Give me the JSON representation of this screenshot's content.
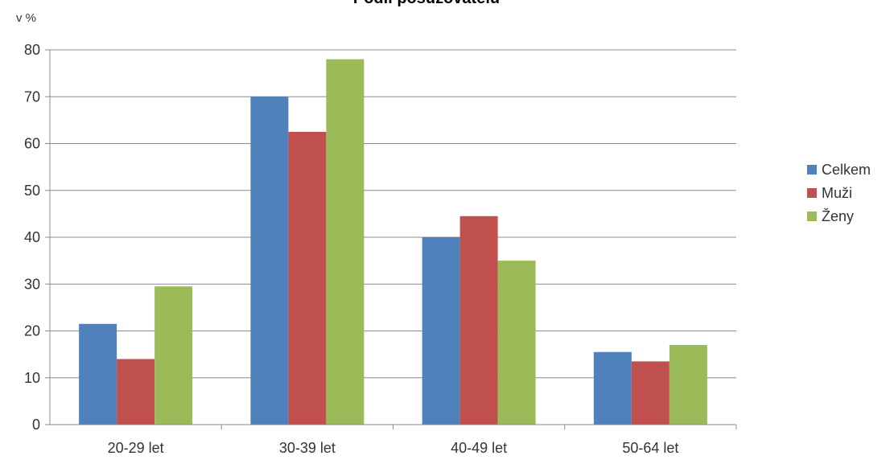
{
  "chart_data": {
    "type": "bar",
    "title": "Podíl posuzovatelů",
    "ylabel": "v %",
    "xlabel": "",
    "categories": [
      "20-29 let",
      "30-39 let",
      "40-49 let",
      "50-64 let"
    ],
    "ylim": [
      0,
      80
    ],
    "yticks": [
      0,
      10,
      20,
      30,
      40,
      50,
      60,
      70,
      80
    ],
    "grid": true,
    "legend_position": "right",
    "series": [
      {
        "name": "Celkem",
        "color": "#4f81bd",
        "values": [
          21.5,
          70,
          40,
          15.5
        ]
      },
      {
        "name": "Muži",
        "color": "#c0504d",
        "values": [
          14,
          62.5,
          44.5,
          13.5
        ]
      },
      {
        "name": "Ženy",
        "color": "#9bbb59",
        "values": [
          29.5,
          78,
          35,
          17
        ]
      }
    ]
  }
}
